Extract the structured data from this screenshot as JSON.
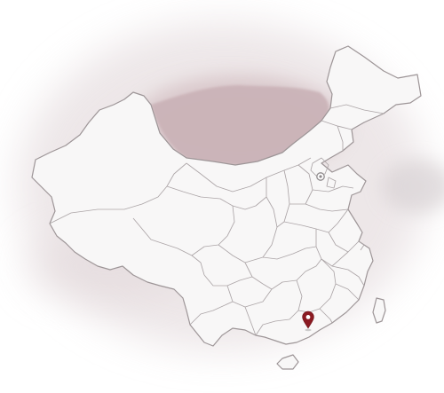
{
  "map": {
    "region": "china-provinces",
    "marker_color": "#8b1a22",
    "capital_marker_color": "#8f8a8c",
    "land_fill": "#f7f6f6",
    "border_color": "#9d9597",
    "shadow_color": "#c9aeb3"
  }
}
